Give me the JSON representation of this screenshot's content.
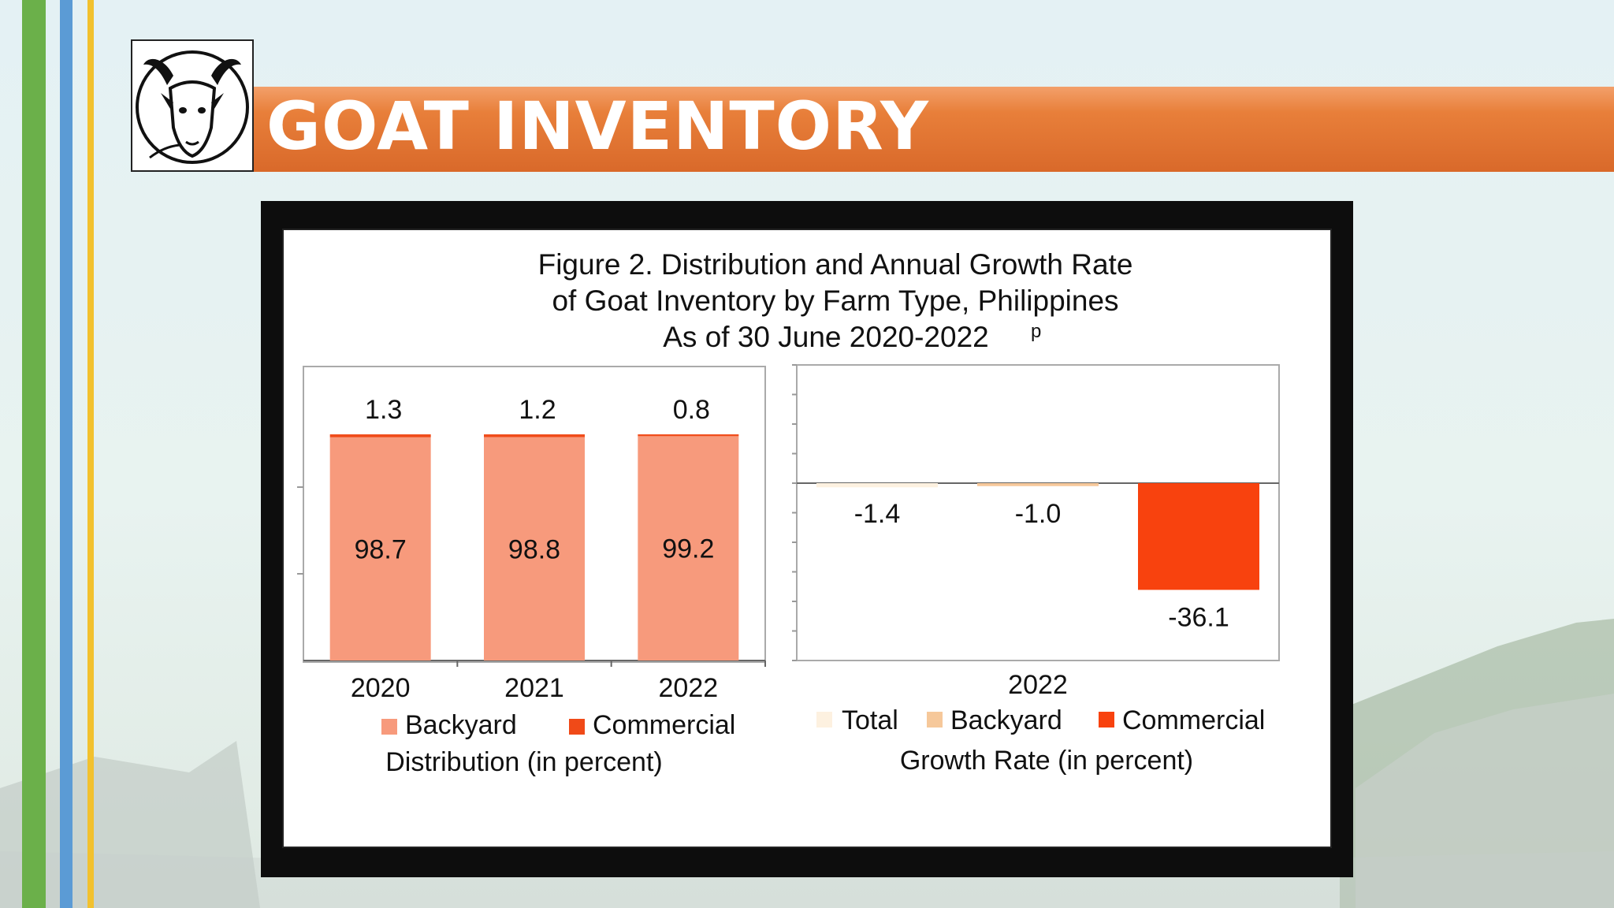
{
  "slide": {
    "title": "GOAT INVENTORY",
    "logo_icon": "goat-head-icon",
    "colors": {
      "title_band": "#e07634",
      "stripe_green": "#6bb04a",
      "stripe_blue": "#5b9bd5",
      "stripe_yellow": "#f2c12e"
    }
  },
  "figure": {
    "title_lines": [
      "Figure 2. Distribution and Annual Growth Rate",
      "of Goat Inventory by Farm Type, Philippines",
      "As of 30 June 2020-2022"
    ],
    "title_superscript": "p"
  },
  "chart_data": [
    {
      "type": "bar",
      "stacked": true,
      "categories": [
        "2020",
        "2021",
        "2022"
      ],
      "series": [
        {
          "name": "Backyard",
          "values": [
            98.7,
            98.8,
            99.2
          ],
          "color": "#f79a7c"
        },
        {
          "name": "Commercial",
          "values": [
            1.3,
            1.2,
            0.8
          ],
          "color": "#f04a18"
        }
      ],
      "xlabel": "Distribution (in percent)",
      "ylim": [
        0,
        130
      ],
      "grid": false,
      "legend_position": "bottom"
    },
    {
      "type": "bar",
      "categories": [
        "2022"
      ],
      "series": [
        {
          "name": "Total",
          "values": [
            -1.4
          ],
          "color": "#fdf1e0"
        },
        {
          "name": "Backyard",
          "values": [
            -1.0
          ],
          "color": "#f6c89a"
        },
        {
          "name": "Commercial",
          "values": [
            -36.1
          ],
          "color": "#f8420e"
        }
      ],
      "xlabel": "Growth Rate (in percent)",
      "ylim": [
        -60,
        40
      ],
      "grid": false,
      "legend_position": "bottom"
    }
  ]
}
